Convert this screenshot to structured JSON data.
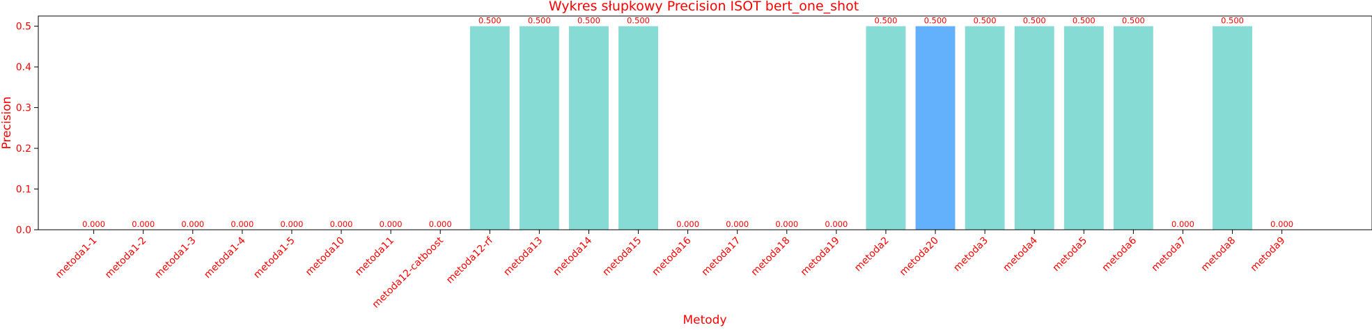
{
  "chart_data": {
    "type": "bar",
    "title": "Wykres słupkowy Precision ISOT bert_one_shot",
    "xlabel": "Metody",
    "ylabel": "Precision",
    "categories": [
      "metoda1-1",
      "metoda1-2",
      "metoda1-3",
      "metoda1-4",
      "metoda1-5",
      "metoda10",
      "metoda11",
      "metoda12-catboost",
      "metoda12-rf",
      "metoda13",
      "metoda14",
      "metoda15",
      "metoda16",
      "metoda17",
      "metoda18",
      "metoda19",
      "metoda2",
      "metoda20",
      "metoda3",
      "metoda4",
      "metoda5",
      "metoda6",
      "metoda7",
      "metoda8",
      "metoda9"
    ],
    "values": [
      0,
      0,
      0,
      0,
      0,
      0,
      0,
      0,
      0.5,
      0.5,
      0.5,
      0.5,
      0,
      0,
      0,
      0,
      0.5,
      0.5,
      0.5,
      0.5,
      0.5,
      0.5,
      0,
      0.5,
      0
    ],
    "value_labels": [
      "0.000",
      "0.000",
      "0.000",
      "0.000",
      "0.000",
      "0.000",
      "0.000",
      "0.000",
      "0.500",
      "0.500",
      "0.500",
      "0.500",
      "0.000",
      "0.000",
      "0.000",
      "0.000",
      "0.500",
      "0.500",
      "0.500",
      "0.500",
      "0.500",
      "0.500",
      "0.000",
      "0.500",
      "0.000"
    ],
    "highlight_category": "metoda20",
    "ylim": [
      0,
      0.525
    ],
    "yticks": [
      0.0,
      0.1,
      0.2,
      0.3,
      0.4,
      0.5
    ],
    "ytick_labels": [
      "0.0",
      "0.1",
      "0.2",
      "0.3",
      "0.4",
      "0.5"
    ],
    "grid": false,
    "legend": "none",
    "colors": {
      "bar": "#86dbd5",
      "highlight": "#63b1fd",
      "text": "#ff0000",
      "axis": "#000000"
    }
  }
}
